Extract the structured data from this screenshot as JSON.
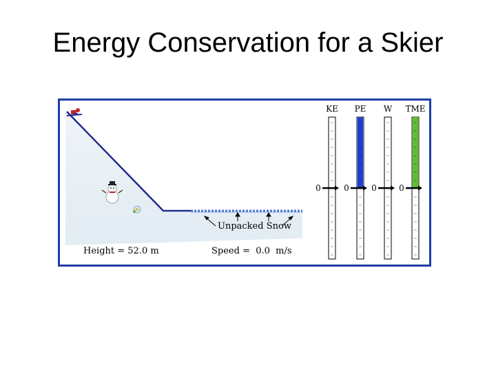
{
  "slide": {
    "title": "Energy Conservation for a Skier"
  },
  "scene": {
    "height_text": "Height = 52.0 m",
    "speed_text": "Speed =  0.0  m/s",
    "snow_label": "Unpacked Snow",
    "icons": [
      "skier-icon",
      "snowman-icon",
      "snow-flower-icon"
    ]
  },
  "energy_bars": {
    "zero_label": "0",
    "bars": [
      {
        "label": "KE",
        "level": 0,
        "color": "#ffffff"
      },
      {
        "label": "PE",
        "level": 1.0,
        "color": "#1f3fd6"
      },
      {
        "label": "W",
        "level": 0,
        "color": "#ffffff"
      },
      {
        "label": "TME",
        "level": 1.0,
        "color": "#5fbf2a"
      }
    ]
  },
  "colors": {
    "frame": "#1f3ea8",
    "slope": "#1f2a8c"
  }
}
